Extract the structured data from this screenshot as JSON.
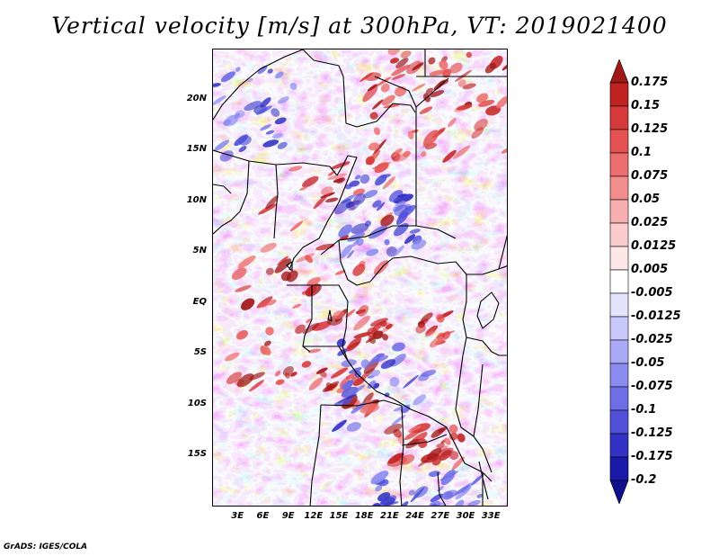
{
  "title": "Vertical velocity [m/s] at 300hPa, VT: 2019021400",
  "credit": "GrADS: IGES/COLA",
  "map": {
    "type": "filled-contour-map",
    "lat_range": [
      -20,
      25
    ],
    "lon_range": [
      0,
      35
    ],
    "lat_labels": [
      "20N",
      "15N",
      "10N",
      "5N",
      "EQ",
      "5S",
      "10S",
      "15S"
    ],
    "lat_values": [
      20,
      15,
      10,
      5,
      0,
      -5,
      -10,
      -15
    ],
    "lon_labels": [
      "3E",
      "6E",
      "9E",
      "12E",
      "15E",
      "18E",
      "21E",
      "24E",
      "27E",
      "30E",
      "33E"
    ],
    "lon_values": [
      3,
      6,
      9,
      12,
      15,
      18,
      21,
      24,
      27,
      30,
      33
    ]
  },
  "colorbar": {
    "labels": [
      "0.175",
      "0.15",
      "0.125",
      "0.1",
      "0.075",
      "0.05",
      "0.025",
      "0.0125",
      "0.005",
      "-0.005",
      "-0.0125",
      "-0.025",
      "-0.05",
      "-0.075",
      "-0.1",
      "-0.125",
      "-0.175",
      "-0.2"
    ],
    "colors": [
      "#a01818",
      "#c02222",
      "#d63a3a",
      "#e45252",
      "#ec6e6e",
      "#f28e8e",
      "#f7aeae",
      "#fbcccc",
      "#fde6e6",
      "#ffffff",
      "#e4e4fc",
      "#c8c8fa",
      "#aaaaf6",
      "#8c8cf0",
      "#6e6ee6",
      "#5050d8",
      "#3232c4",
      "#1a1aa8",
      "#10108c"
    ]
  }
}
